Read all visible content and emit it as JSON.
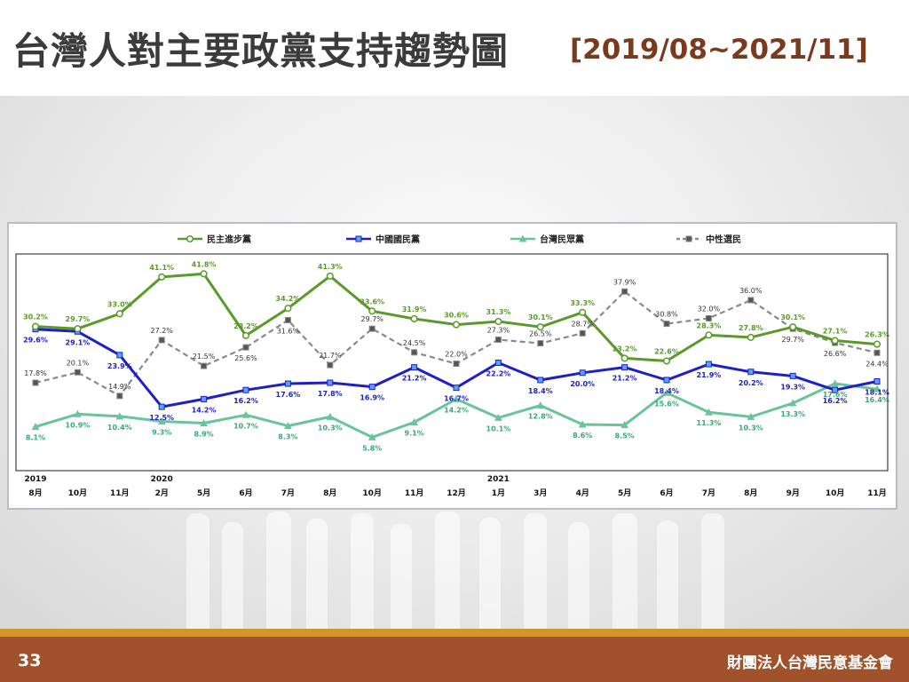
{
  "slide": {
    "title": "台灣人對主要政黨支持趨勢圖",
    "range": "[2019/08~2021/11]",
    "page_number": "33",
    "organization": "財團法人台灣民意基金會"
  },
  "colors": {
    "title_text": "#3b3b3b",
    "range_text": "#7a3a1d",
    "footer": "#a0522d",
    "footer_stripe": "#d4962a"
  },
  "chart_data": {
    "type": "line",
    "title": "",
    "xlabel": "",
    "ylabel": "",
    "ylim": [
      0,
      45
    ],
    "grid": false,
    "legend_position": "top",
    "year_labels": [
      {
        "index": 0,
        "label": "2019"
      },
      {
        "index": 3,
        "label": "2020"
      },
      {
        "index": 11,
        "label": "2021"
      }
    ],
    "categories": [
      "8月",
      "10月",
      "11月",
      "2月",
      "5月",
      "6月",
      "7月",
      "8月",
      "10月",
      "11月",
      "12月",
      "1月",
      "3月",
      "4月",
      "5月",
      "6月",
      "7月",
      "8月",
      "9月",
      "10月",
      "11月"
    ],
    "series": [
      {
        "name": "民主進步黨",
        "color": "#5a9a2a",
        "style": "solid",
        "marker": "circle",
        "label_color": "#5a9a2a",
        "values": [
          30.2,
          29.7,
          33.0,
          41.1,
          41.8,
          28.2,
          34.2,
          41.3,
          33.6,
          31.9,
          30.6,
          31.3,
          30.1,
          33.3,
          23.2,
          22.6,
          28.3,
          27.8,
          30.1,
          27.1,
          26.3
        ],
        "labels": [
          "30.2%",
          "29.7%",
          "33.0%",
          "41.1%",
          "41.8%",
          "28.2%",
          "34.2%",
          "41.3%",
          "33.6%",
          "31.9%",
          "30.6%",
          "31.3%",
          "30.1%",
          "33.3%",
          "23.2%",
          "22.6%",
          "28.3%",
          "27.8%",
          "30.1%",
          "27.1%",
          "26.3%"
        ]
      },
      {
        "name": "中國國民黨",
        "color": "#1f1fc7",
        "style": "solid",
        "marker": "square",
        "label_color": "#1f1fc7",
        "values": [
          29.6,
          29.1,
          23.9,
          12.5,
          14.2,
          16.2,
          17.6,
          17.8,
          16.9,
          21.2,
          16.7,
          22.2,
          18.4,
          20.0,
          21.2,
          18.4,
          21.9,
          20.2,
          19.3,
          16.2,
          18.1
        ],
        "labels": [
          "29.6%",
          "29.1%",
          "23.9%",
          "12.5%",
          "14.2%",
          "16.2%",
          "17.6%",
          "17.8%",
          "16.9%",
          "21.2%",
          "16.7%",
          "22.2%",
          "18.4%",
          "20.0%",
          "21.2%",
          "18.4%",
          "21.9%",
          "20.2%",
          "19.3%",
          "16.2%",
          "18.1%"
        ]
      },
      {
        "name": "台灣民眾黨",
        "color": "#6ac49a",
        "style": "solid",
        "marker": "triangle",
        "label_color": "#3aa878",
        "values": [
          8.1,
          10.9,
          10.4,
          9.3,
          8.9,
          10.7,
          8.3,
          10.3,
          5.8,
          9.1,
          14.2,
          10.1,
          12.8,
          8.6,
          8.5,
          15.6,
          11.3,
          10.3,
          13.3,
          17.6,
          16.4
        ],
        "labels": [
          "8.1%",
          "10.9%",
          "10.4%",
          "9.3%",
          "8.9%",
          "10.7%",
          "8.3%",
          "10.3%",
          "5.8%",
          "9.1%",
          "14.2%",
          "10.1%",
          "12.8%",
          "8.6%",
          "8.5%",
          "15.6%",
          "11.3%",
          "10.3%",
          "13.3%",
          "17.6%",
          "16.4%"
        ]
      },
      {
        "name": "中性選民",
        "color": "#8a8a8a",
        "style": "dashed",
        "marker": "square",
        "label_color": "#333333",
        "values": [
          17.8,
          20.1,
          14.9,
          27.2,
          21.5,
          25.6,
          31.6,
          21.7,
          29.7,
          24.5,
          22.0,
          27.3,
          26.5,
          28.7,
          37.9,
          30.8,
          32.0,
          36.0,
          29.7,
          26.6,
          24.4
        ],
        "labels": [
          "17.8%",
          "20.1%",
          "14.9%",
          "27.2%",
          "21.5%",
          "25.6%",
          "31.6%",
          "21.7%",
          "29.7%",
          "24.5%",
          "22.0%",
          "27.3%",
          "26.5%",
          "28.7%",
          "37.9%",
          "30.8%",
          "32.0%",
          "36.0%",
          "29.7%",
          "26.6%",
          "24.4%"
        ]
      }
    ]
  }
}
